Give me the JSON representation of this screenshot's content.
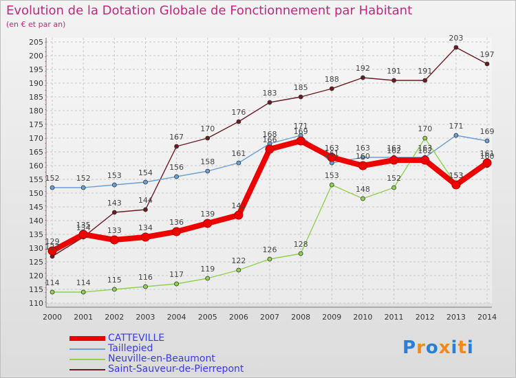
{
  "chart_data": {
    "type": "line",
    "title": "Evolution de la Dotation Globale de Fonctionnement par Habitant",
    "subtitle": "(en € et par an)",
    "xlabel": "",
    "ylabel": "",
    "ylim": [
      110,
      205
    ],
    "ytick_step": 5,
    "grid": true,
    "legend_position": "bottom-left",
    "categories": [
      "2000",
      "2001",
      "2002",
      "2003",
      "2004",
      "2005",
      "2006",
      "2007",
      "2008",
      "2009",
      "2010",
      "2011",
      "2012",
      "2013",
      "2014"
    ],
    "series": [
      {
        "name": "CATTEVILLE",
        "color": "#ee0000",
        "values": [
          129,
          135,
          133,
          134,
          136,
          139,
          142,
          166,
          169,
          163,
          160,
          162,
          162,
          153,
          161
        ]
      },
      {
        "name": "Taillepied",
        "color": "#6a9fd4",
        "values": [
          152,
          152,
          153,
          154,
          156,
          158,
          161,
          168,
          171,
          161,
          163,
          163,
          163,
          171,
          169
        ]
      },
      {
        "name": "Neuville-en-Beaumont",
        "color": "#8fd14f",
        "values": [
          114,
          114,
          115,
          116,
          117,
          119,
          122,
          126,
          128,
          153,
          148,
          152,
          170,
          153,
          160
        ]
      },
      {
        "name": "Saint-Sauveur-de-Pierrepont",
        "color": "#6b1a22",
        "values": [
          127,
          134,
          143,
          144,
          167,
          170,
          176,
          183,
          185,
          188,
          192,
          191,
          191,
          203,
          197
        ]
      }
    ]
  },
  "brand": {
    "letters": [
      "P",
      "r",
      "o",
      "x",
      "i",
      "t",
      "i"
    ],
    "colors": [
      "#2a7fd4",
      "#f08a1c",
      "#2a7fd4",
      "#f08a1c",
      "#2a7fd4",
      "#f08a1c",
      "#2a7fd4"
    ]
  }
}
